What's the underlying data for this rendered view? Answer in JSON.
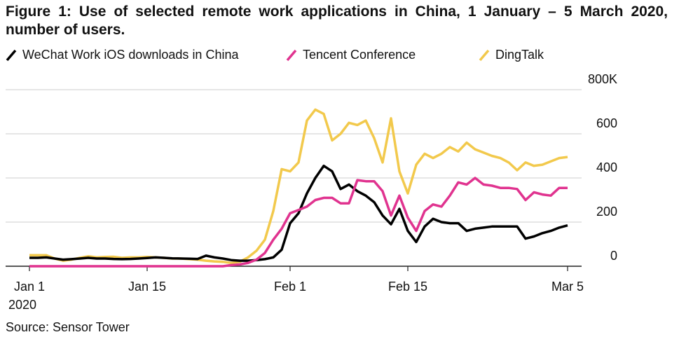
{
  "chart_data": {
    "type": "line",
    "title": "Figure 1: Use of selected remote work applications in China, 1 January – 5 March 2020, number of users.",
    "source": "Source: Sensor Tower",
    "x_sublabel": "2020",
    "x": [
      "2020-01-01",
      "2020-01-02",
      "2020-01-03",
      "2020-01-04",
      "2020-01-05",
      "2020-01-06",
      "2020-01-07",
      "2020-01-08",
      "2020-01-09",
      "2020-01-10",
      "2020-01-11",
      "2020-01-12",
      "2020-01-13",
      "2020-01-14",
      "2020-01-15",
      "2020-01-16",
      "2020-01-17",
      "2020-01-18",
      "2020-01-19",
      "2020-01-20",
      "2020-01-21",
      "2020-01-22",
      "2020-01-23",
      "2020-01-24",
      "2020-01-25",
      "2020-01-26",
      "2020-01-27",
      "2020-01-28",
      "2020-01-29",
      "2020-01-30",
      "2020-01-31",
      "2020-02-01",
      "2020-02-02",
      "2020-02-03",
      "2020-02-04",
      "2020-02-05",
      "2020-02-06",
      "2020-02-07",
      "2020-02-08",
      "2020-02-09",
      "2020-02-10",
      "2020-02-11",
      "2020-02-12",
      "2020-02-13",
      "2020-02-14",
      "2020-02-15",
      "2020-02-16",
      "2020-02-17",
      "2020-02-18",
      "2020-02-19",
      "2020-02-20",
      "2020-02-21",
      "2020-02-22",
      "2020-02-23",
      "2020-02-24",
      "2020-02-25",
      "2020-02-26",
      "2020-02-27",
      "2020-02-28",
      "2020-02-29",
      "2020-03-01",
      "2020-03-02",
      "2020-03-03",
      "2020-03-04",
      "2020-03-05"
    ],
    "series": [
      {
        "name": "WeChat Work iOS downloads in China",
        "color": "#000000",
        "values": [
          38,
          38,
          40,
          35,
          30,
          32,
          35,
          38,
          35,
          35,
          33,
          32,
          33,
          35,
          37,
          40,
          38,
          36,
          35,
          34,
          33,
          48,
          40,
          35,
          28,
          25,
          25,
          28,
          32,
          40,
          75,
          195,
          240,
          330,
          400,
          455,
          430,
          350,
          370,
          340,
          320,
          290,
          230,
          190,
          260,
          160,
          110,
          180,
          215,
          200,
          195,
          195,
          160,
          170,
          175,
          180,
          180,
          180,
          180,
          125,
          135,
          150,
          160,
          175,
          185
        ]
      },
      {
        "name": "Tencent Conference",
        "color": "#e0338f",
        "values": [
          0,
          0,
          0,
          0,
          0,
          0,
          0,
          0,
          0,
          0,
          0,
          0,
          0,
          0,
          0,
          0,
          0,
          0,
          0,
          0,
          0,
          0,
          0,
          0,
          5,
          8,
          15,
          30,
          60,
          120,
          170,
          240,
          255,
          270,
          300,
          310,
          310,
          285,
          285,
          390,
          385,
          385,
          340,
          230,
          320,
          220,
          160,
          250,
          280,
          270,
          320,
          380,
          370,
          400,
          370,
          365,
          355,
          355,
          350,
          300,
          335,
          325,
          320,
          355,
          355
        ]
      },
      {
        "name": "DingTalk",
        "color": "#f2c94c",
        "values": [
          50,
          50,
          50,
          35,
          25,
          30,
          38,
          45,
          40,
          42,
          43,
          38,
          40,
          40,
          42,
          40,
          38,
          35,
          35,
          32,
          30,
          25,
          22,
          20,
          15,
          20,
          40,
          70,
          120,
          250,
          440,
          430,
          470,
          660,
          710,
          690,
          570,
          600,
          650,
          640,
          660,
          580,
          470,
          670,
          430,
          330,
          460,
          510,
          490,
          510,
          540,
          520,
          560,
          530,
          515,
          500,
          490,
          470,
          435,
          470,
          455,
          460,
          475,
          490,
          495
        ]
      }
    ],
    "xlim": [
      "2020-01-01",
      "2020-03-05"
    ],
    "xticks": [
      {
        "value": "2020-01-01",
        "label": "Jan 1"
      },
      {
        "value": "2020-01-15",
        "label": "Jan 15"
      },
      {
        "value": "2020-02-01",
        "label": "Feb 1"
      },
      {
        "value": "2020-02-15",
        "label": "Feb 15"
      },
      {
        "value": "2020-03-05",
        "label": "Mar 5"
      }
    ],
    "ylim": [
      0,
      800
    ],
    "yticks": [
      0,
      200,
      400,
      600,
      {
        "value": 800,
        "label": "800K"
      }
    ],
    "grid": true,
    "legend": "top"
  }
}
